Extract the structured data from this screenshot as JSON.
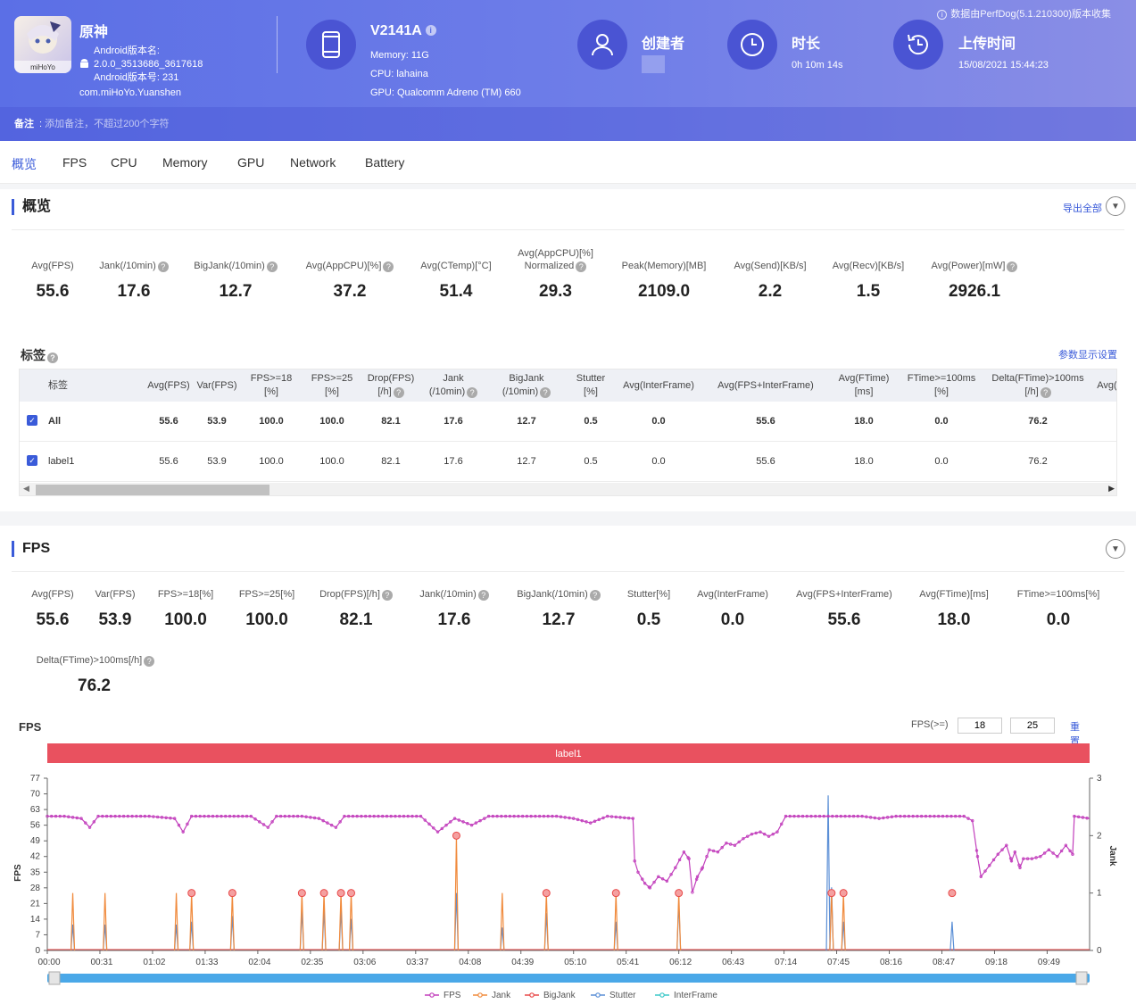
{
  "header": {
    "app": {
      "name": "原神",
      "version_name_label": "Android版本名:",
      "version_name": "2.0.0_3513686_3617618",
      "version_code_label": "Android版本号: 231",
      "package": "com.miHoYo.Yuanshen",
      "icon_text": "miHoYo"
    },
    "device": {
      "name": "V2141A",
      "memory": "Memory: 11G",
      "cpu": "CPU: lahaina",
      "gpu": "GPU: Qualcomm Adreno (TM) 660"
    },
    "creator": {
      "label": "创建者"
    },
    "duration": {
      "label": "时长",
      "value": "0h 10m 14s"
    },
    "upload": {
      "label": "上传时间",
      "value": "15/08/2021 15:44:23"
    },
    "perfdog_note": "数据由PerfDog(5.1.210300)版本收集",
    "remark_label": "备注",
    "remark_placeholder": "添加备注，不超过200个字符"
  },
  "tabs": [
    "概览",
    "FPS",
    "CPU",
    "Memory",
    "GPU",
    "Network",
    "Battery"
  ],
  "overview": {
    "title": "概览",
    "export_label": "导出全部",
    "metrics": [
      {
        "label": "Avg(FPS)",
        "value": "55.6"
      },
      {
        "label": "Jank(/10min)",
        "value": "17.6"
      },
      {
        "label": "BigJank(/10min)",
        "value": "12.7"
      },
      {
        "label": "Avg(AppCPU)[%]",
        "value": "37.2"
      },
      {
        "label": "Avg(CTemp)[°C]",
        "value": "51.4"
      },
      {
        "label": "Avg(AppCPU)[%]",
        "label2": "Normalized",
        "value": "29.3"
      },
      {
        "label": "Peak(Memory)[MB]",
        "value": "2109.0"
      },
      {
        "label": "Avg(Send)[KB/s]",
        "value": "2.2"
      },
      {
        "label": "Avg(Recv)[KB/s]",
        "value": "1.5"
      },
      {
        "label": "Avg(Power)[mW]",
        "value": "2926.1"
      }
    ],
    "tags_title": "标签",
    "param_settings": "参数显示设置",
    "table": {
      "headers": [
        "标签",
        "Avg(FPS)",
        "Var(FPS)",
        "FPS>=18|[%]",
        "FPS>=25|[%]",
        "Drop(FPS)|[/h]",
        "Jank|(/10min)",
        "BigJank|(/10min)",
        "Stutter|[%]",
        "Avg(InterFrame)",
        "Avg(FPS+InterFrame)",
        "Avg(FTime)|[ms]",
        "FTime>=100ms|[%]",
        "Delta(FTime)>100ms|[/h]",
        "Avg(I"
      ],
      "rows": [
        {
          "label": "All",
          "values": [
            "55.6",
            "53.9",
            "100.0",
            "100.0",
            "82.1",
            "17.6",
            "12.7",
            "0.5",
            "0.0",
            "55.6",
            "18.0",
            "0.0",
            "76.2"
          ]
        },
        {
          "label": "label1",
          "values": [
            "55.6",
            "53.9",
            "100.0",
            "100.0",
            "82.1",
            "17.6",
            "12.7",
            "0.5",
            "0.0",
            "55.6",
            "18.0",
            "0.0",
            "76.2"
          ]
        }
      ]
    }
  },
  "fps_section": {
    "title": "FPS",
    "metrics": [
      {
        "label": "Avg(FPS)",
        "value": "55.6"
      },
      {
        "label": "Var(FPS)",
        "value": "53.9"
      },
      {
        "label": "FPS>=18[%]",
        "value": "100.0"
      },
      {
        "label": "FPS>=25[%]",
        "value": "100.0"
      },
      {
        "label": "Drop(FPS)[/h]",
        "value": "82.1"
      },
      {
        "label": "Jank(/10min)",
        "value": "17.6"
      },
      {
        "label": "BigJank(/10min)",
        "value": "12.7"
      },
      {
        "label": "Stutter[%]",
        "value": "0.5"
      },
      {
        "label": "Avg(InterFrame)",
        "value": "0.0"
      },
      {
        "label": "Avg(FPS+InterFrame)",
        "value": "55.6"
      },
      {
        "label": "Avg(FTime)[ms]",
        "value": "18.0"
      },
      {
        "label": "FTime>=100ms[%]",
        "value": "0.0"
      }
    ],
    "extra_metric": {
      "label": "Delta(FTime)>100ms[/h]",
      "value": "76.2"
    },
    "chart_label": "FPS",
    "fps_threshold_label": "FPS(>=)",
    "threshold1": "18",
    "threshold2": "25",
    "reset_label": "重置"
  },
  "chart_data": {
    "type": "line",
    "title": "FPS",
    "band_label": "label1",
    "ylabel": "FPS",
    "y2label": "Jank",
    "ylim": [
      0,
      77
    ],
    "y2lim": [
      0,
      3
    ],
    "yticks": [
      "0",
      "7",
      "14",
      "21",
      "28",
      "35",
      "42",
      "49",
      "56",
      "63",
      "70",
      "77"
    ],
    "y2ticks": [
      "0",
      "1",
      "2",
      "3"
    ],
    "duration_s": 614,
    "xticks": [
      "00:00",
      "00:31",
      "01:02",
      "01:33",
      "02:04",
      "02:35",
      "03:06",
      "03:37",
      "04:08",
      "04:39",
      "05:10",
      "05:41",
      "06:12",
      "06:43",
      "07:14",
      "07:45",
      "08:16",
      "08:47",
      "09:18",
      "09:49"
    ],
    "fps_series": [
      [
        0,
        60
      ],
      [
        10,
        60
      ],
      [
        20,
        59
      ],
      [
        25,
        55
      ],
      [
        30,
        60
      ],
      [
        60,
        60
      ],
      [
        75,
        59
      ],
      [
        80,
        53
      ],
      [
        85,
        60
      ],
      [
        120,
        60
      ],
      [
        130,
        55
      ],
      [
        135,
        60
      ],
      [
        150,
        60
      ],
      [
        160,
        59
      ],
      [
        170,
        55
      ],
      [
        175,
        60
      ],
      [
        220,
        60
      ],
      [
        230,
        53
      ],
      [
        240,
        59
      ],
      [
        250,
        56
      ],
      [
        260,
        60
      ],
      [
        300,
        60
      ],
      [
        310,
        59
      ],
      [
        320,
        57
      ],
      [
        330,
        60
      ],
      [
        345,
        59
      ],
      [
        346,
        40
      ],
      [
        348,
        35
      ],
      [
        352,
        30
      ],
      [
        355,
        28
      ],
      [
        360,
        33
      ],
      [
        365,
        31
      ],
      [
        370,
        37
      ],
      [
        375,
        44
      ],
      [
        378,
        41
      ],
      [
        380,
        26
      ],
      [
        383,
        33
      ],
      [
        386,
        37
      ],
      [
        390,
        45
      ],
      [
        395,
        44
      ],
      [
        400,
        48
      ],
      [
        405,
        47
      ],
      [
        410,
        50
      ],
      [
        415,
        52
      ],
      [
        420,
        53
      ],
      [
        425,
        51
      ],
      [
        430,
        53
      ],
      [
        435,
        60
      ],
      [
        470,
        60
      ],
      [
        480,
        60
      ],
      [
        490,
        59
      ],
      [
        500,
        60
      ],
      [
        540,
        60
      ],
      [
        545,
        58
      ],
      [
        548,
        42
      ],
      [
        550,
        33
      ],
      [
        555,
        38
      ],
      [
        560,
        43
      ],
      [
        565,
        47
      ],
      [
        568,
        40
      ],
      [
        570,
        44
      ],
      [
        573,
        37
      ],
      [
        575,
        41
      ],
      [
        580,
        41
      ],
      [
        585,
        42
      ],
      [
        590,
        45
      ],
      [
        595,
        42
      ],
      [
        600,
        47
      ],
      [
        604,
        43
      ],
      [
        605,
        60
      ],
      [
        614,
        59
      ]
    ],
    "jank_series": {
      "name": "Jank",
      "times_s": [
        15,
        34,
        76,
        85,
        109,
        150,
        163,
        173,
        179,
        241,
        268,
        294,
        335,
        372,
        462,
        469
      ],
      "values": [
        1,
        1,
        1,
        1,
        1,
        1,
        1,
        1,
        1,
        2,
        1,
        1,
        1,
        1,
        1,
        1
      ]
    },
    "bigjank_series": {
      "name": "BigJank",
      "times_s": [
        85,
        109,
        150,
        163,
        173,
        179,
        241,
        294,
        335,
        372,
        462,
        469,
        533
      ],
      "values": [
        1,
        1,
        1,
        1,
        1,
        1,
        1,
        1,
        1,
        1,
        1,
        1,
        1
      ]
    },
    "stutter_series": {
      "name": "Stutter",
      "times_s": [
        15,
        34,
        76,
        85,
        109,
        150,
        163,
        173,
        179,
        241,
        268,
        294,
        335,
        372,
        460,
        462,
        469,
        533
      ],
      "values": [
        0.45,
        0.45,
        0.45,
        0.5,
        0.6,
        0.7,
        0.7,
        0.7,
        0.55,
        1.0,
        0.4,
        0.65,
        0.5,
        0.85,
        2.7,
        1.1,
        0.5,
        0.5
      ]
    },
    "legend": [
      "FPS",
      "Jank",
      "BigJank",
      "Stutter",
      "InterFrame"
    ],
    "colors": {
      "fps": "#c23fbc",
      "jank": "#f08a3c",
      "bigjank": "#e84a4a",
      "stutter": "#5b8fd6",
      "interframe": "#3cc8c8",
      "band": "#e9515f",
      "slider": "#4aa8e8"
    }
  }
}
